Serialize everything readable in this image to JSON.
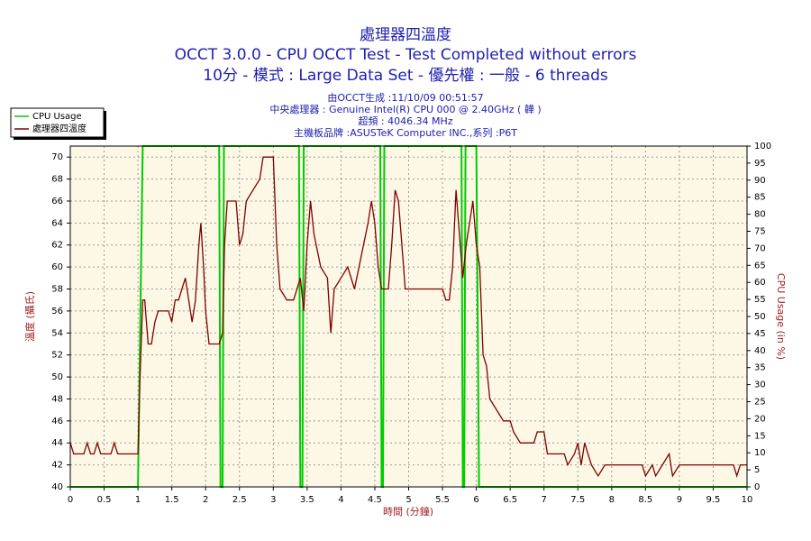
{
  "chart_data": {
    "type": "line",
    "title": "處理器四溫度",
    "subtitle": [
      "OCCT 3.0.0 - CPU OCCT Test - Test Completed without errors",
      "10分 - 模式 : Large Data Set - 優先權 : 一般 - 6 threads"
    ],
    "info": [
      "由OCCT生成 :11/10/09 00:51:57",
      "中央處理器 : Genuine Intel(R) CPU 000 @ 2.40GHz (  韡  )",
      "超頻 : 4046.34 MHz",
      "主機板品牌 :ASUSTeK Computer INC.,系列 :P6T"
    ],
    "x_label": "時間 (分鐘)",
    "y_label": "溫度 (攝氏)",
    "y2_label": "CPU Usage (in %)",
    "xlim": [
      0,
      10
    ],
    "xticks": [
      0,
      0.5,
      1,
      1.5,
      2,
      2.5,
      3,
      3.5,
      4,
      4.5,
      5,
      5.5,
      6,
      6.5,
      7,
      7.5,
      8,
      8.5,
      9,
      9.5,
      10
    ],
    "ylim": [
      40,
      71
    ],
    "yticks": [
      40,
      42,
      44,
      46,
      48,
      50,
      52,
      54,
      56,
      58,
      60,
      62,
      64,
      66,
      68,
      70
    ],
    "y2lim": [
      0,
      100
    ],
    "y2ticks": [
      0,
      5,
      10,
      15,
      20,
      25,
      30,
      35,
      40,
      45,
      50,
      55,
      60,
      65,
      70,
      75,
      80,
      85,
      90,
      95,
      100
    ],
    "grid": true,
    "legend": "top-left",
    "series": [
      {
        "name": "CPU Usage",
        "color": "#00cc00",
        "axis": "y2",
        "x": [
          0,
          1.0,
          1.07,
          2.2,
          2.22,
          2.25,
          2.27,
          3.38,
          3.4,
          3.43,
          3.45,
          4.58,
          4.6,
          4.62,
          4.64,
          5.78,
          5.8,
          5.82,
          5.84,
          6.0,
          6.04,
          10
        ],
        "values": [
          0,
          0,
          100,
          100,
          0,
          0,
          100,
          100,
          0,
          0,
          100,
          100,
          0,
          0,
          100,
          100,
          0,
          0,
          100,
          100,
          0,
          0
        ]
      },
      {
        "name": "處理器四溫度",
        "color": "#800000",
        "x": [
          0,
          0.05,
          0.2,
          0.25,
          0.3,
          0.35,
          0.4,
          0.45,
          0.6,
          0.65,
          0.7,
          1.0,
          1.03,
          1.07,
          1.1,
          1.15,
          1.2,
          1.25,
          1.3,
          1.45,
          1.5,
          1.55,
          1.6,
          1.65,
          1.7,
          1.75,
          1.8,
          1.85,
          1.9,
          1.93,
          1.97,
          2.0,
          2.05,
          2.2,
          2.25,
          2.28,
          2.32,
          2.45,
          2.5,
          2.55,
          2.6,
          2.7,
          2.8,
          2.85,
          3.0,
          3.05,
          3.1,
          3.2,
          3.3,
          3.35,
          3.4,
          3.45,
          3.5,
          3.55,
          3.6,
          3.7,
          3.8,
          3.85,
          3.9,
          4.0,
          4.1,
          4.2,
          4.3,
          4.4,
          4.45,
          4.5,
          4.55,
          4.6,
          4.7,
          4.75,
          4.8,
          4.85,
          4.9,
          4.95,
          5.5,
          5.55,
          5.6,
          5.65,
          5.7,
          5.75,
          5.8,
          5.85,
          5.9,
          5.95,
          6.0,
          6.05,
          6.1,
          6.15,
          6.2,
          6.3,
          6.4,
          6.5,
          6.55,
          6.65,
          6.85,
          6.9,
          7.0,
          7.05,
          7.3,
          7.35,
          7.45,
          7.5,
          7.55,
          7.6,
          7.65,
          7.7,
          7.8,
          7.9,
          8.45,
          8.5,
          8.6,
          8.65,
          8.75,
          8.85,
          8.9,
          9.0,
          9.8,
          9.85,
          9.9,
          10
        ],
        "values": [
          44,
          43,
          43,
          44,
          43,
          43,
          44,
          43,
          43,
          44,
          43,
          43,
          50,
          57,
          57,
          53,
          53,
          55,
          56,
          56,
          55,
          57,
          57,
          58,
          59,
          57,
          55,
          57,
          62,
          64,
          60,
          56,
          53,
          53,
          54,
          62,
          66,
          66,
          62,
          63,
          66,
          67,
          68,
          70,
          70,
          62,
          58,
          57,
          57,
          58,
          59,
          56,
          62,
          66,
          63,
          60,
          59,
          54,
          58,
          59,
          60,
          58,
          61,
          64,
          66,
          64,
          60,
          58,
          58,
          62,
          67,
          66,
          62,
          58,
          58,
          57,
          57,
          60,
          67,
          63,
          59,
          62,
          64,
          66,
          62,
          60,
          52,
          51,
          48,
          47,
          46,
          46,
          45,
          44,
          44,
          45,
          45,
          43,
          43,
          42,
          43,
          44,
          42,
          44,
          43,
          42,
          41,
          42,
          42,
          41,
          42,
          41,
          42,
          43,
          41,
          42,
          42,
          41,
          42,
          42
        ]
      }
    ]
  }
}
